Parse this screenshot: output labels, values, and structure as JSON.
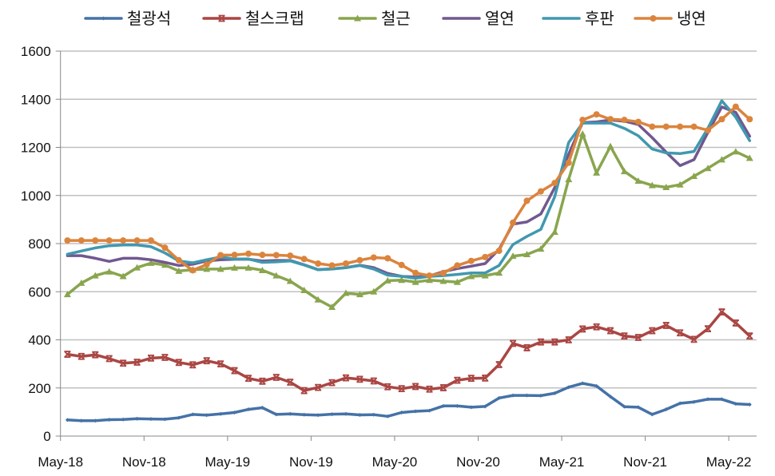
{
  "chart_data": {
    "type": "line",
    "title": "",
    "xlabel": "",
    "ylabel": "",
    "ylim": [
      0,
      1600
    ],
    "yticks": [
      "0",
      "200",
      "400",
      "600",
      "800",
      "1000",
      "1200",
      "1400",
      "1600"
    ],
    "grid": true,
    "legend_position": "top",
    "x": [
      "May-18",
      "Jun-18",
      "Jul-18",
      "Aug-18",
      "Sep-18",
      "Oct-18",
      "Nov-18",
      "Dec-18",
      "Jan-19",
      "Feb-19",
      "Mar-19",
      "Apr-19",
      "May-19",
      "Jun-19",
      "Jul-19",
      "Aug-19",
      "Sep-19",
      "Oct-19",
      "Nov-19",
      "Dec-19",
      "Jan-20",
      "Feb-20",
      "Mar-20",
      "Apr-20",
      "May-20",
      "Jun-20",
      "Jul-20",
      "Aug-20",
      "Sep-20",
      "Oct-20",
      "Nov-20",
      "Dec-20",
      "Jan-21",
      "Feb-21",
      "Mar-21",
      "Apr-21",
      "May-21",
      "Jun-21",
      "Jul-21",
      "Aug-21",
      "Sep-21",
      "Oct-21",
      "Nov-21",
      "Dec-21",
      "Jan-22",
      "Feb-22",
      "Mar-22",
      "Apr-22",
      "May-22",
      "Jun-22"
    ],
    "xtick_labels": [
      "May-18",
      "Nov-18",
      "May-19",
      "Nov-19",
      "May-20",
      "Nov-20",
      "May-21",
      "Nov-21",
      "May-22"
    ],
    "series": [
      {
        "name": "철광석",
        "color": "#4572A7",
        "marker": "diamond",
        "values": [
          67,
          64,
          64,
          68,
          69,
          72,
          71,
          70,
          76,
          90,
          87,
          92,
          98,
          111,
          118,
          90,
          92,
          89,
          87,
          91,
          92,
          88,
          89,
          82,
          98,
          103,
          106,
          125,
          125,
          120,
          123,
          158,
          169,
          169,
          168,
          178,
          203,
          219,
          208,
          164,
          122,
          120,
          90,
          111,
          136,
          142,
          153,
          153,
          134,
          131
        ]
      },
      {
        "name": "철스크랩",
        "color": "#AA4643",
        "marker": "star",
        "values": [
          340,
          331,
          338,
          322,
          303,
          307,
          324,
          327,
          306,
          296,
          313,
          300,
          272,
          240,
          228,
          244,
          224,
          189,
          202,
          222,
          242,
          236,
          229,
          205,
          197,
          206,
          195,
          201,
          232,
          240,
          241,
          297,
          385,
          367,
          391,
          391,
          400,
          445,
          454,
          438,
          416,
          410,
          438,
          460,
          429,
          402,
          446,
          516,
          470,
          416
        ]
      },
      {
        "name": "철근",
        "color": "#89A54E",
        "marker": "triangle",
        "values": [
          589,
          636,
          667,
          683,
          664,
          700,
          719,
          711,
          686,
          691,
          694,
          694,
          699,
          699,
          689,
          667,
          644,
          606,
          567,
          536,
          594,
          589,
          600,
          646,
          648,
          640,
          648,
          644,
          640,
          664,
          667,
          678,
          748,
          755,
          778,
          848,
          1067,
          1256,
          1094,
          1204,
          1100,
          1060,
          1042,
          1034,
          1045,
          1080,
          1113,
          1149,
          1182,
          1155
        ]
      },
      {
        "name": "열연",
        "color": "#71588F",
        "marker": "none",
        "values": [
          750,
          750,
          739,
          726,
          739,
          739,
          733,
          722,
          709,
          714,
          728,
          733,
          735,
          735,
          728,
          730,
          730,
          712,
          692,
          695,
          700,
          710,
          700,
          676,
          664,
          661,
          666,
          683,
          696,
          706,
          717,
          776,
          881,
          890,
          923,
          1033,
          1171,
          1303,
          1306,
          1314,
          1309,
          1295,
          1240,
          1180,
          1124,
          1149,
          1262,
          1368,
          1345,
          1246
        ]
      },
      {
        "name": "후판",
        "color": "#4198AF",
        "marker": "none",
        "values": [
          756,
          769,
          782,
          791,
          794,
          794,
          787,
          761,
          728,
          720,
          733,
          744,
          736,
          736,
          722,
          724,
          728,
          711,
          691,
          694,
          700,
          709,
          694,
          669,
          664,
          656,
          664,
          667,
          672,
          678,
          678,
          709,
          796,
          830,
          859,
          995,
          1220,
          1301,
          1301,
          1301,
          1279,
          1248,
          1193,
          1177,
          1174,
          1183,
          1279,
          1394,
          1325,
          1228
        ]
      },
      {
        "name": "냉연",
        "color": "#DB843D",
        "marker": "circle",
        "values": [
          813,
          813,
          813,
          813,
          813,
          813,
          813,
          783,
          731,
          689,
          713,
          752,
          753,
          758,
          753,
          752,
          750,
          736,
          717,
          709,
          717,
          731,
          742,
          739,
          711,
          678,
          667,
          678,
          709,
          728,
          744,
          770,
          887,
          978,
          1017,
          1052,
          1136,
          1314,
          1337,
          1317,
          1314,
          1306,
          1286,
          1286,
          1286,
          1286,
          1271,
          1317,
          1369,
          1317
        ]
      }
    ]
  }
}
